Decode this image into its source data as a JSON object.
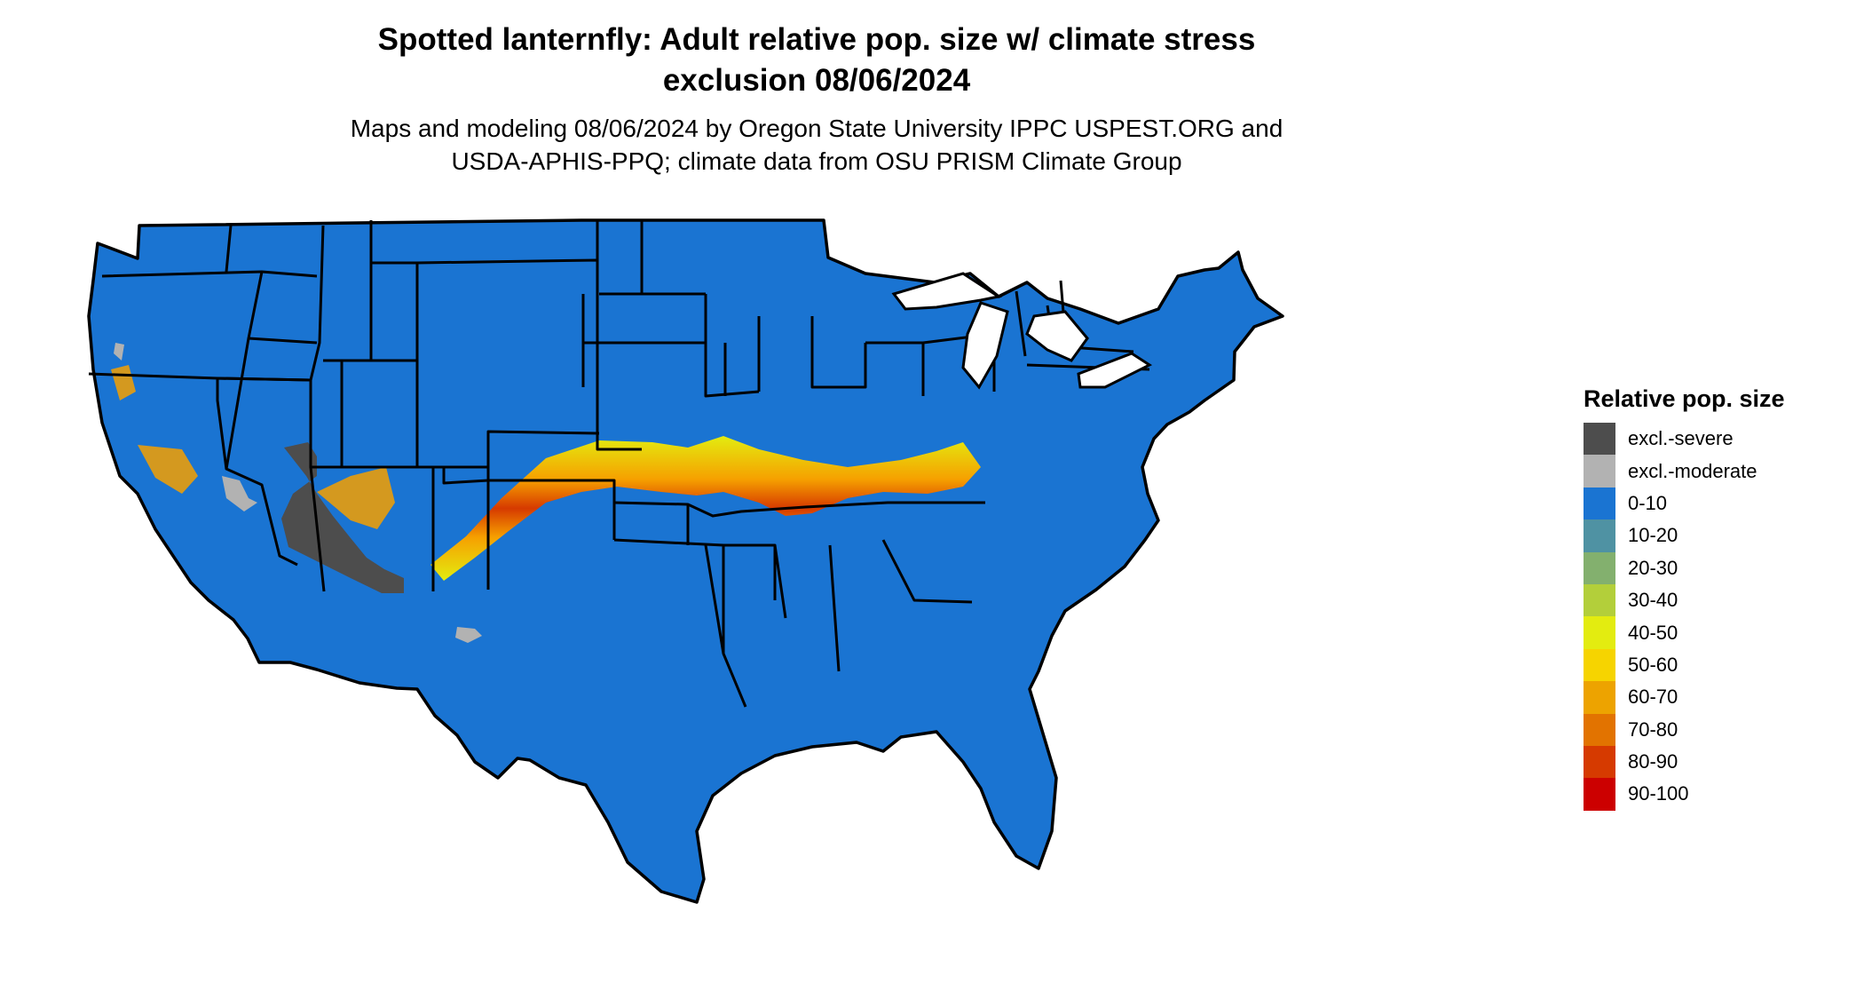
{
  "title": {
    "line1": "Spotted lanternfly: Adult relative pop. size w/ climate stress",
    "line2": "exclusion 08/06/2024"
  },
  "subtitle": {
    "line1": "Maps and modeling 08/06/2024 by Oregon State University IPPC USPEST.ORG and",
    "line2": "USDA-APHIS-PPQ; climate data from OSU PRISM Climate Group"
  },
  "map": {
    "base_color": "#1a74d2",
    "border_color": "#000000",
    "excl_severe_color": "#4d4d4d",
    "excl_moderate_color": "#b2b2b2"
  },
  "legend": {
    "title": "Relative pop. size",
    "items": [
      {
        "label": "excl.-severe",
        "color": "#4d4d4d"
      },
      {
        "label": "excl.-moderate",
        "color": "#b2b2b2"
      },
      {
        "label": "0-10",
        "color": "#1a74d2"
      },
      {
        "label": "10-20",
        "color": "#4f92a3"
      },
      {
        "label": "20-30",
        "color": "#83b06e"
      },
      {
        "label": "30-40",
        "color": "#b3cf3a"
      },
      {
        "label": "40-50",
        "color": "#e3ec10"
      },
      {
        "label": "50-60",
        "color": "#f6d400"
      },
      {
        "label": "60-70",
        "color": "#eda300"
      },
      {
        "label": "70-80",
        "color": "#e27300"
      },
      {
        "label": "80-90",
        "color": "#d63a00"
      },
      {
        "label": "90-100",
        "color": "#cc0000"
      }
    ]
  }
}
